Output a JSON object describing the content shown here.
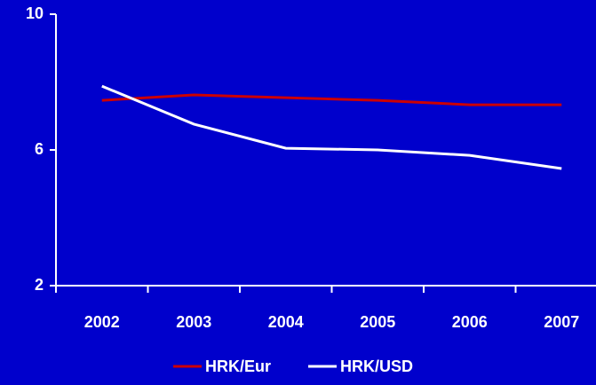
{
  "chart_data": {
    "type": "line",
    "categories": [
      "2002",
      "2003",
      "2004",
      "2005",
      "2006",
      "2007"
    ],
    "series": [
      {
        "name": "HRK/Eur",
        "color": "#cc0000",
        "values": [
          7.46,
          7.62,
          7.54,
          7.46,
          7.33,
          7.33
        ]
      },
      {
        "name": "HRK/USD",
        "color": "#ffffff",
        "values": [
          7.88,
          6.76,
          6.05,
          6.0,
          5.84,
          5.45
        ]
      }
    ],
    "ylim": [
      2,
      10
    ],
    "yticks": [
      2,
      6,
      10
    ],
    "grid": false,
    "legend": "bottom"
  }
}
